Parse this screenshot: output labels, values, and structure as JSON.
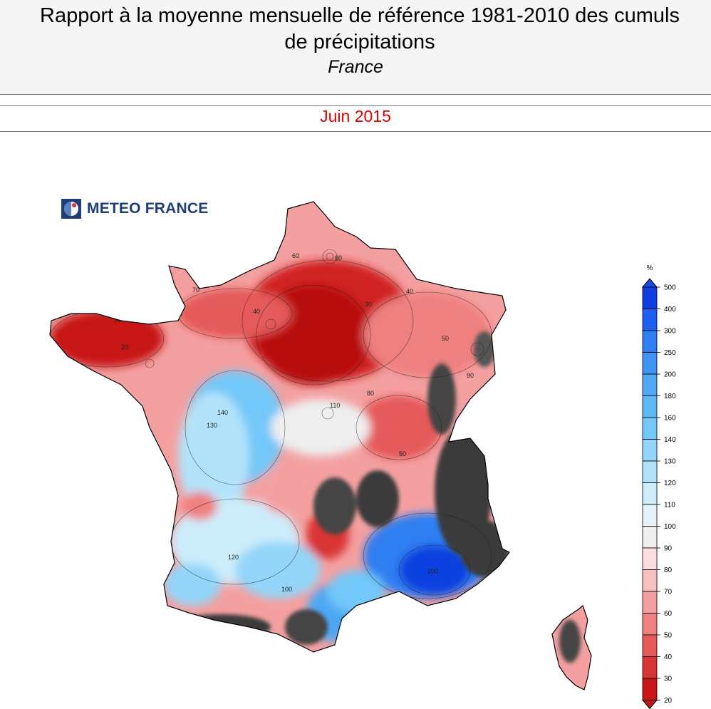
{
  "header": {
    "title_line1": "Rapport à la moyenne mensuelle de référence 1981-2010 des cumuls",
    "title_line2": "de précipitations",
    "subtitle": "France",
    "period": "Juin 2015"
  },
  "logo": {
    "text": "METEO FRANCE",
    "icon": "meteo-france-logo-icon"
  },
  "legend": {
    "unit": "%",
    "levels": [
      "500",
      "400",
      "300",
      "250",
      "200",
      "180",
      "160",
      "140",
      "130",
      "120",
      "110",
      "100",
      "90",
      "80",
      "70",
      "60",
      "50",
      "40",
      "30",
      "20"
    ],
    "colors": [
      "#0f3fe0",
      "#1e5ff0",
      "#2f7ff2",
      "#3f95f3",
      "#4ea8f4",
      "#5cb8f6",
      "#72c8f8",
      "#93d6f9",
      "#b2e2fa",
      "#cdedfb",
      "#e4f3f8",
      "#eeeeee",
      "#fbdede",
      "#f8c0c0",
      "#f4a0a0",
      "#ef8080",
      "#e55a5a",
      "#d93535",
      "#c81515"
    ],
    "low_arrow_color": "#c81515",
    "high_arrow_color": "#1a4de6"
  },
  "map": {
    "contour_labels": [
      "20",
      "30",
      "40",
      "50",
      "60",
      "70",
      "80",
      "90",
      "100",
      "110",
      "120",
      "130",
      "140",
      "200",
      "50",
      "30",
      "40",
      "60"
    ],
    "over_max_color": "#3a3a3a"
  }
}
